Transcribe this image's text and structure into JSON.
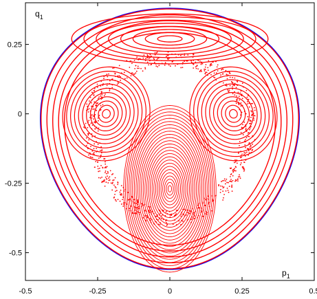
{
  "chart_data": {
    "type": "scatter",
    "title": "",
    "xlabel": "p",
    "xlabel_sub": "1",
    "ylabel": "q",
    "ylabel_sub": "1",
    "xlim": [
      -0.5,
      0.5
    ],
    "ylim": [
      -0.6,
      0.4
    ],
    "xticks": [
      -0.5,
      -0.25,
      0,
      0.25,
      0.5
    ],
    "xtick_labels": [
      "-0.5",
      "-0.25",
      "0",
      "0.25",
      "0.5"
    ],
    "yticks": [
      -0.5,
      -0.25,
      0,
      0.25
    ],
    "ytick_labels": [
      "-0.5",
      "-0.25",
      "0",
      "0.25"
    ],
    "grid": false,
    "colors": {
      "orbits": "#ff0000",
      "boundary": "#0000ff",
      "axes": "#000000"
    },
    "boundary": {
      "p_range": [
        -0.45,
        0.45
      ],
      "q_range": [
        -0.56,
        0.38
      ]
    },
    "islands": [
      {
        "name": "left",
        "center": [
          -0.22,
          0.0
        ]
      },
      {
        "name": "right",
        "center": [
          0.22,
          0.0
        ]
      },
      {
        "name": "central",
        "center": [
          0.0,
          -0.27
        ]
      },
      {
        "name": "top",
        "center": [
          0.0,
          0.27
        ]
      }
    ]
  }
}
